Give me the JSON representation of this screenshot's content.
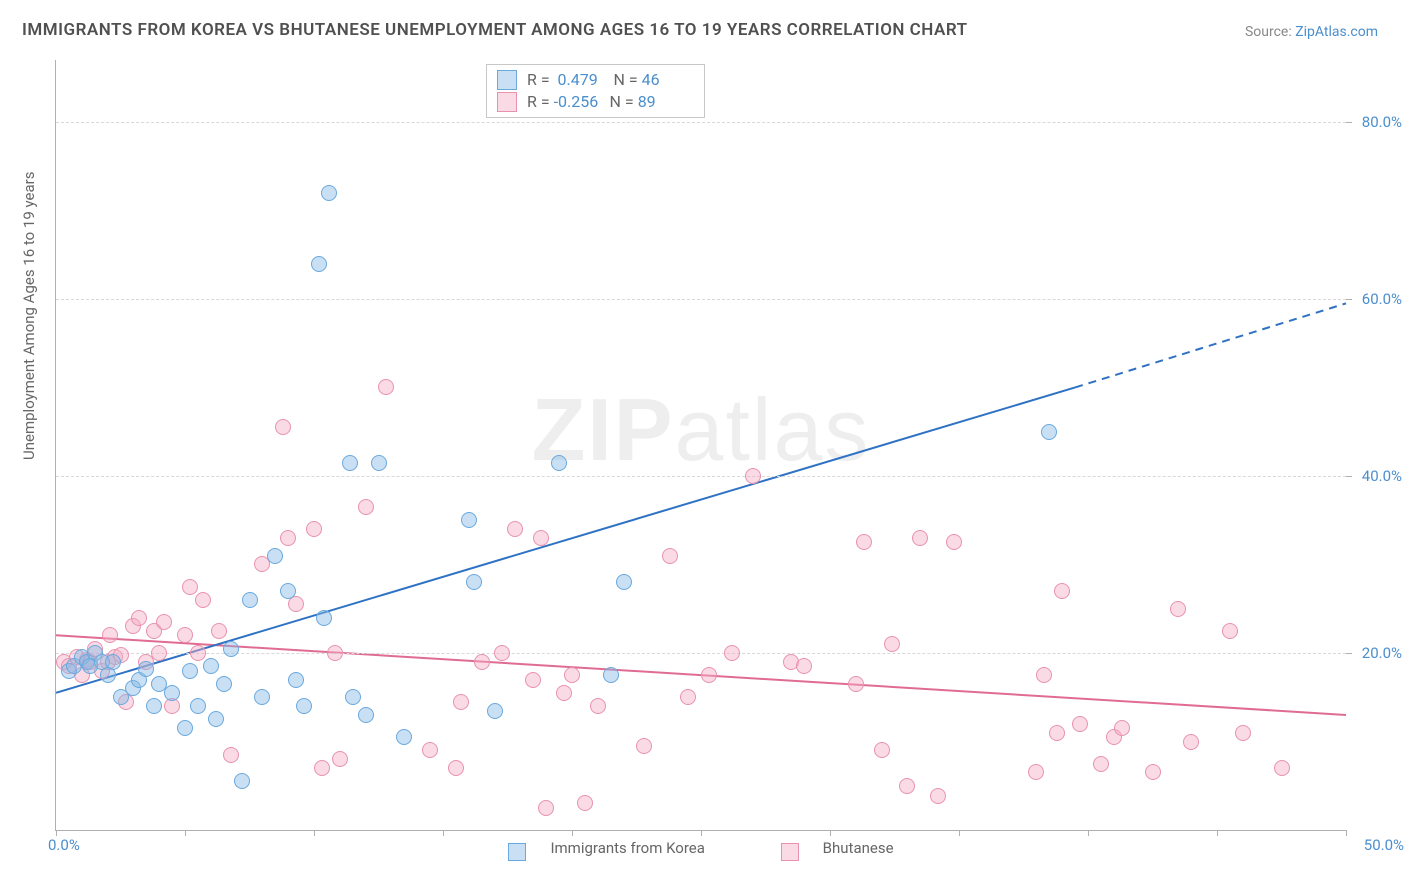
{
  "title": "IMMIGRANTS FROM KOREA VS BHUTANESE UNEMPLOYMENT AMONG AGES 16 TO 19 YEARS CORRELATION CHART",
  "source_prefix": "Source: ",
  "source_name": "ZipAtlas.com",
  "ylabel": "Unemployment Among Ages 16 to 19 years",
  "watermark_bold": "ZIP",
  "watermark_light": "atlas",
  "chart": {
    "type": "scatter",
    "xlim": [
      0,
      50
    ],
    "ylim": [
      0,
      87
    ],
    "x_ticks": [
      0,
      50
    ],
    "x_tick_labels": [
      "0.0%",
      "50.0%"
    ],
    "x_minor_ticks": [
      5,
      10,
      15,
      20,
      25,
      30,
      35,
      40,
      45
    ],
    "y_grid": [
      20,
      40,
      60,
      80
    ],
    "y_grid_labels": [
      "20.0%",
      "40.0%",
      "60.0%",
      "80.0%"
    ],
    "grid_color": "#d8d8d8",
    "axis_color": "#b0b0b0",
    "background": "#ffffff",
    "marker_radius": 8,
    "marker_border": 1.5,
    "series": [
      {
        "name": "Immigrants from Korea",
        "fill": "rgba(136,183,228,0.45)",
        "stroke": "#6aa9de",
        "line_color": "#2f72c4",
        "line_width": 2,
        "R": "0.479",
        "N": "46",
        "trend": {
          "x1": 0,
          "y1": 15.5,
          "x2": 39.5,
          "y2": 50,
          "dash_x2": 50,
          "dash_y2": 59.5
        },
        "points": [
          [
            0.5,
            18
          ],
          [
            0.7,
            18.5
          ],
          [
            1.0,
            19.5
          ],
          [
            1.2,
            19
          ],
          [
            1.3,
            18.5
          ],
          [
            1.5,
            20
          ],
          [
            1.8,
            19
          ],
          [
            2.0,
            17.5
          ],
          [
            2.2,
            19
          ],
          [
            2.5,
            15
          ],
          [
            3.0,
            16
          ],
          [
            3.2,
            17
          ],
          [
            3.5,
            18.2
          ],
          [
            3.8,
            14
          ],
          [
            4.0,
            16.5
          ],
          [
            4.5,
            15.5
          ],
          [
            5.0,
            11.5
          ],
          [
            5.2,
            18
          ],
          [
            5.5,
            14
          ],
          [
            6.0,
            18.5
          ],
          [
            6.2,
            12.5
          ],
          [
            6.5,
            16.5
          ],
          [
            6.8,
            20.5
          ],
          [
            7.2,
            5.5
          ],
          [
            7.5,
            26
          ],
          [
            8.0,
            15
          ],
          [
            8.5,
            31
          ],
          [
            9.0,
            27
          ],
          [
            9.3,
            17
          ],
          [
            9.6,
            14
          ],
          [
            10.2,
            64
          ],
          [
            10.4,
            24
          ],
          [
            10.6,
            72
          ],
          [
            11.4,
            41.5
          ],
          [
            11.5,
            15
          ],
          [
            12.0,
            13
          ],
          [
            12.5,
            41.5
          ],
          [
            13.5,
            10.5
          ],
          [
            16.0,
            35
          ],
          [
            16.2,
            28
          ],
          [
            17.0,
            13.5
          ],
          [
            19.5,
            41.5
          ],
          [
            21.5,
            17.5
          ],
          [
            22.0,
            28
          ],
          [
            38.5,
            45
          ]
        ]
      },
      {
        "name": "Bhutanese",
        "fill": "rgba(243,172,196,0.45)",
        "stroke": "#e892af",
        "line_color": "#e06b93",
        "line_width": 2,
        "R": "-0.256",
        "N": "89",
        "trend": {
          "x1": 0,
          "y1": 22,
          "x2": 50,
          "y2": 13
        },
        "points": [
          [
            0.3,
            19
          ],
          [
            0.5,
            18.5
          ],
          [
            0.8,
            19.5
          ],
          [
            1.0,
            17.5
          ],
          [
            1.2,
            19.2
          ],
          [
            1.3,
            19
          ],
          [
            1.5,
            20.5
          ],
          [
            1.8,
            18
          ],
          [
            2.0,
            19
          ],
          [
            2.1,
            22
          ],
          [
            2.3,
            19.5
          ],
          [
            2.5,
            19.8
          ],
          [
            2.7,
            14.5
          ],
          [
            3.0,
            23
          ],
          [
            3.2,
            24
          ],
          [
            3.5,
            19
          ],
          [
            3.8,
            22.5
          ],
          [
            4.0,
            20
          ],
          [
            4.2,
            23.5
          ],
          [
            4.5,
            14
          ],
          [
            5.0,
            22
          ],
          [
            5.2,
            27.5
          ],
          [
            5.5,
            20
          ],
          [
            5.7,
            26
          ],
          [
            6.3,
            22.5
          ],
          [
            6.8,
            8.5
          ],
          [
            8.0,
            30
          ],
          [
            8.8,
            45.5
          ],
          [
            9.0,
            33
          ],
          [
            9.3,
            25.5
          ],
          [
            10.0,
            34
          ],
          [
            10.3,
            7
          ],
          [
            10.8,
            20
          ],
          [
            11.0,
            8
          ],
          [
            12.0,
            36.5
          ],
          [
            12.8,
            50
          ],
          [
            14.5,
            9
          ],
          [
            15.5,
            7
          ],
          [
            15.7,
            14.5
          ],
          [
            16.5,
            19
          ],
          [
            17.3,
            20
          ],
          [
            17.8,
            34
          ],
          [
            18.5,
            17
          ],
          [
            18.8,
            33
          ],
          [
            19.0,
            2.5
          ],
          [
            19.7,
            15.5
          ],
          [
            20.0,
            17.5
          ],
          [
            20.5,
            3
          ],
          [
            21.0,
            14
          ],
          [
            22.8,
            9.5
          ],
          [
            23.8,
            31
          ],
          [
            24.5,
            15
          ],
          [
            25.3,
            17.5
          ],
          [
            26.2,
            20
          ],
          [
            27.0,
            40
          ],
          [
            28.5,
            19
          ],
          [
            29.0,
            18.5
          ],
          [
            31.0,
            16.5
          ],
          [
            31.3,
            32.5
          ],
          [
            32.0,
            9
          ],
          [
            32.4,
            21
          ],
          [
            33.0,
            5
          ],
          [
            33.5,
            33
          ],
          [
            34.2,
            3.8
          ],
          [
            34.8,
            32.5
          ],
          [
            38.0,
            6.5
          ],
          [
            38.3,
            17.5
          ],
          [
            38.8,
            11
          ],
          [
            39.0,
            27
          ],
          [
            39.7,
            12
          ],
          [
            40.5,
            7.5
          ],
          [
            41.0,
            10.5
          ],
          [
            41.3,
            11.5
          ],
          [
            42.5,
            6.5
          ],
          [
            43.5,
            25
          ],
          [
            44.0,
            10
          ],
          [
            45.5,
            22.5
          ],
          [
            46.0,
            11
          ],
          [
            47.5,
            7
          ]
        ]
      }
    ]
  }
}
